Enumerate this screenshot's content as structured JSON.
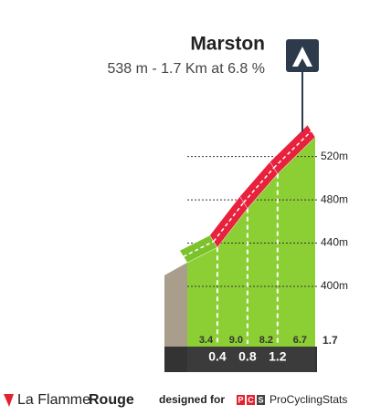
{
  "chart_data": {
    "type": "climb-profile",
    "title": "Marston",
    "subtitle": "538 m - 1.7 Km at 6.8 %",
    "x": [
      0,
      0.4,
      0.8,
      1.2,
      1.7
    ],
    "elevation": [
      422,
      436,
      472,
      504,
      538
    ],
    "gradients": [
      3.4,
      9.0,
      8.2,
      6.7
    ],
    "gradient_labels": [
      "3.4",
      "9.0",
      "8.2",
      "6.7"
    ],
    "segment_colors": [
      "#7cc32b",
      "#e8213c",
      "#e8213c",
      "#e8213c"
    ],
    "face_color": "#8ccf35",
    "xlim": [
      0,
      1.7
    ],
    "xticks": [
      0.4,
      0.8,
      1.2,
      1.7
    ],
    "ylim": [
      357,
      545
    ],
    "yticks": [
      {
        "value": 400,
        "label": "400m"
      },
      {
        "value": 440,
        "label": "440m"
      },
      {
        "value": 480,
        "label": "480m"
      },
      {
        "value": 520,
        "label": "520m"
      }
    ]
  },
  "footer": {
    "brand_light": "La Flamme",
    "brand_bold": "Rouge",
    "designed": "designed for",
    "pcs": [
      "P",
      "C",
      "S"
    ],
    "site": "ProCyclingStats"
  }
}
